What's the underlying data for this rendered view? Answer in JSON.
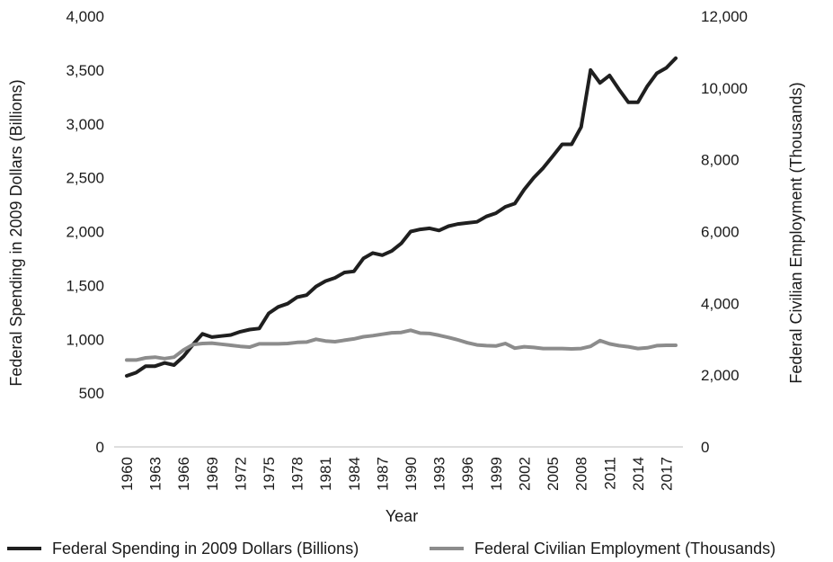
{
  "chart_data": {
    "type": "line",
    "title": "",
    "xlabel": "Year",
    "ylabel_left": "Federal Spending in 2009 Dollars (Billions)",
    "ylabel_right": "Federal Civilian Employment (Thousands)",
    "ylim_left": [
      0,
      4000
    ],
    "ylim_right": [
      0,
      12000
    ],
    "yticks_left": [
      "0",
      "500",
      "1,000",
      "1,500",
      "2,000",
      "2,500",
      "3,000",
      "3,500",
      "4,000"
    ],
    "yticks_right": [
      "0",
      "2,000",
      "4,000",
      "6,000",
      "8,000",
      "10,000",
      "12,000"
    ],
    "xticks": [
      "1960",
      "1963",
      "1966",
      "1969",
      "1972",
      "1975",
      "1978",
      "1981",
      "1984",
      "1987",
      "1990",
      "1993",
      "1996",
      "1999",
      "2002",
      "2005",
      "2008",
      "2011",
      "2014",
      "2017"
    ],
    "x": [
      1960,
      1961,
      1962,
      1963,
      1964,
      1965,
      1966,
      1967,
      1968,
      1969,
      1970,
      1971,
      1972,
      1973,
      1974,
      1975,
      1976,
      1977,
      1978,
      1979,
      1980,
      1981,
      1982,
      1983,
      1984,
      1985,
      1986,
      1987,
      1988,
      1989,
      1990,
      1991,
      1992,
      1993,
      1994,
      1995,
      1996,
      1997,
      1998,
      1999,
      2000,
      2001,
      2002,
      2003,
      2004,
      2005,
      2006,
      2007,
      2008,
      2009,
      2010,
      2011,
      2012,
      2013,
      2014,
      2015,
      2016,
      2017,
      2018
    ],
    "grid": false,
    "legend_position": "bottom",
    "series": [
      {
        "name": "Federal Spending in 2009 Dollars (Billions)",
        "axis": "left",
        "color": "#1f1f1f",
        "values": [
          660,
          690,
          750,
          750,
          780,
          760,
          840,
          950,
          1050,
          1020,
          1030,
          1040,
          1070,
          1090,
          1100,
          1240,
          1300,
          1330,
          1390,
          1410,
          1490,
          1540,
          1570,
          1620,
          1630,
          1750,
          1800,
          1780,
          1820,
          1890,
          2000,
          2020,
          2030,
          2010,
          2050,
          2070,
          2080,
          2090,
          2140,
          2170,
          2230,
          2260,
          2390,
          2500,
          2590,
          2700,
          2810,
          2810,
          2970,
          3500,
          3380,
          3450,
          3320,
          3200,
          3200,
          3350,
          3470,
          3520,
          3610
        ]
      },
      {
        "name": "Federal Civilian Employment (Thousands)",
        "axis": "right",
        "color": "#8c8c8c",
        "values": [
          2420,
          2420,
          2480,
          2500,
          2460,
          2500,
          2700,
          2850,
          2880,
          2890,
          2860,
          2830,
          2800,
          2780,
          2870,
          2870,
          2870,
          2880,
          2910,
          2920,
          3000,
          2950,
          2930,
          2970,
          3010,
          3070,
          3100,
          3140,
          3180,
          3190,
          3250,
          3170,
          3160,
          3110,
          3050,
          2980,
          2900,
          2840,
          2820,
          2810,
          2880,
          2750,
          2790,
          2770,
          2740,
          2740,
          2740,
          2730,
          2740,
          2800,
          2960,
          2870,
          2820,
          2790,
          2740,
          2760,
          2820,
          2830,
          2830
        ]
      }
    ]
  }
}
